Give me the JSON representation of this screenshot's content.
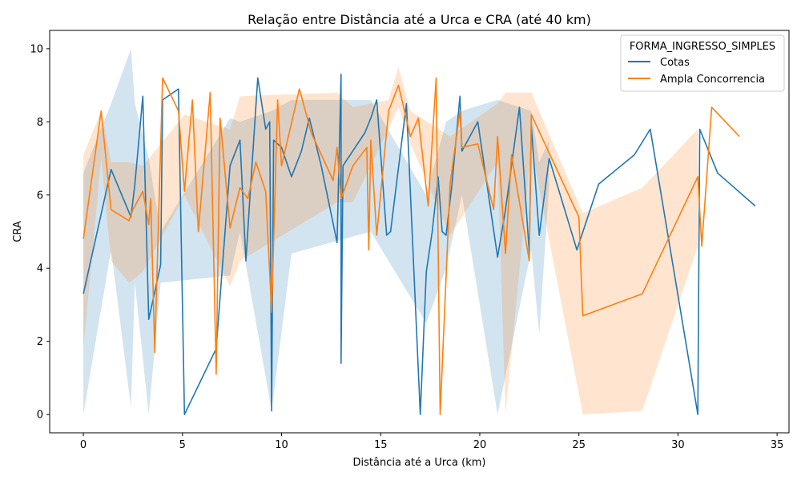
{
  "chart_data": {
    "type": "line",
    "title": "Relação entre Distância até a Urca e CRA (até 40 km)",
    "xlabel": "Distância até a Urca (km)",
    "ylabel": "CRA",
    "xlim": [
      -1.7,
      35.6
    ],
    "ylim": [
      -0.5,
      10.5
    ],
    "x_ticks": [
      0,
      5,
      10,
      15,
      20,
      25,
      30,
      35
    ],
    "y_ticks": [
      0,
      2,
      4,
      6,
      8,
      10
    ],
    "x_tick_labels": [
      "0",
      "5",
      "10",
      "15",
      "20",
      "25",
      "30",
      "35"
    ],
    "y_tick_labels": [
      "0",
      "2",
      "4",
      "6",
      "8",
      "10"
    ],
    "grid": false,
    "legend": {
      "title": "FORMA_INGRESSO_SIMPLES",
      "placement": "top-right",
      "entries": [
        "Cotas",
        "Ampla Concorrencia"
      ]
    },
    "series": [
      {
        "name": "Cotas",
        "color": "#1f77b4",
        "band_color": "#1f77b4",
        "points": [
          [
            0.0,
            3.3
          ],
          [
            1.4,
            6.7
          ],
          [
            2.4,
            5.4
          ],
          [
            2.6,
            6.3
          ],
          [
            3.0,
            8.7
          ],
          [
            3.3,
            2.6
          ],
          [
            3.9,
            4.1
          ],
          [
            4.0,
            8.6
          ],
          [
            4.8,
            8.9
          ],
          [
            5.1,
            0.0
          ],
          [
            6.7,
            1.8
          ],
          [
            7.4,
            6.8
          ],
          [
            7.9,
            7.5
          ],
          [
            8.2,
            4.2
          ],
          [
            8.4,
            5.9
          ],
          [
            8.8,
            9.2
          ],
          [
            9.2,
            7.8
          ],
          [
            9.4,
            8.0
          ],
          [
            9.5,
            0.1
          ],
          [
            9.6,
            7.5
          ],
          [
            10.0,
            7.3
          ],
          [
            10.5,
            6.5
          ],
          [
            11.0,
            7.2
          ],
          [
            11.4,
            8.1
          ],
          [
            12.0,
            6.8
          ],
          [
            12.8,
            4.7
          ],
          [
            13.0,
            9.3
          ],
          [
            13.0,
            1.4
          ],
          [
            13.1,
            6.8
          ],
          [
            14.2,
            7.7
          ],
          [
            14.5,
            8.1
          ],
          [
            14.8,
            8.6
          ],
          [
            15.3,
            4.9
          ],
          [
            15.5,
            5.0
          ],
          [
            16.3,
            8.5
          ],
          [
            17.0,
            0.0
          ],
          [
            17.3,
            3.9
          ],
          [
            17.6,
            5.0
          ],
          [
            17.9,
            6.5
          ],
          [
            18.1,
            5.0
          ],
          [
            18.3,
            4.9
          ],
          [
            18.6,
            6.3
          ],
          [
            19.0,
            8.7
          ],
          [
            19.1,
            7.2
          ],
          [
            19.9,
            8.0
          ],
          [
            20.9,
            4.3
          ],
          [
            21.3,
            5.6
          ],
          [
            22.0,
            8.4
          ],
          [
            22.5,
            4.4
          ],
          [
            22.6,
            7.9
          ],
          [
            23.0,
            4.9
          ],
          [
            23.5,
            7.0
          ],
          [
            24.9,
            4.5
          ],
          [
            26.0,
            6.3
          ],
          [
            27.8,
            7.1
          ],
          [
            28.6,
            7.8
          ],
          [
            31.0,
            0.0
          ],
          [
            31.1,
            7.8
          ],
          [
            32.0,
            6.6
          ],
          [
            33.9,
            5.7
          ]
        ],
        "band": [
          [
            0.0,
            0.0,
            6.6
          ],
          [
            1.4,
            4.5,
            8.5
          ],
          [
            2.4,
            0.2,
            10.0
          ],
          [
            2.6,
            3.6,
            8.5
          ],
          [
            3.3,
            0.0,
            7.0
          ],
          [
            3.9,
            3.6,
            5.0
          ],
          [
            7.4,
            3.8,
            8.1
          ],
          [
            7.9,
            5.0,
            8.0
          ],
          [
            9.5,
            0.1,
            8.3
          ],
          [
            10.5,
            4.4,
            8.6
          ],
          [
            14.5,
            5.0,
            8.6
          ],
          [
            17.3,
            2.5,
            6.0
          ],
          [
            18.3,
            4.0,
            8.0
          ],
          [
            19.1,
            6.0,
            8.3
          ],
          [
            20.9,
            0.0,
            8.6
          ],
          [
            22.6,
            4.5,
            8.3
          ],
          [
            23.0,
            2.2,
            6.9
          ],
          [
            23.5,
            6.3,
            7.5
          ]
        ]
      },
      {
        "name": "Ampla Concorrencia",
        "color": "#ff7f0e",
        "band_color": "#ff7f0e",
        "points": [
          [
            0.0,
            4.8
          ],
          [
            0.9,
            8.3
          ],
          [
            1.4,
            5.6
          ],
          [
            2.3,
            5.3
          ],
          [
            2.5,
            5.6
          ],
          [
            3.0,
            6.1
          ],
          [
            3.3,
            5.2
          ],
          [
            3.4,
            5.9
          ],
          [
            3.6,
            1.7
          ],
          [
            4.0,
            9.2
          ],
          [
            4.8,
            8.3
          ],
          [
            5.1,
            6.1
          ],
          [
            5.5,
            8.6
          ],
          [
            5.8,
            5.0
          ],
          [
            6.4,
            8.8
          ],
          [
            6.7,
            1.1
          ],
          [
            6.9,
            8.1
          ],
          [
            7.4,
            5.1
          ],
          [
            7.9,
            6.2
          ],
          [
            8.3,
            5.9
          ],
          [
            8.7,
            6.9
          ],
          [
            9.2,
            6.1
          ],
          [
            9.5,
            2.8
          ],
          [
            9.8,
            8.6
          ],
          [
            10.0,
            6.8
          ],
          [
            10.9,
            8.9
          ],
          [
            11.5,
            7.7
          ],
          [
            12.6,
            6.4
          ],
          [
            12.8,
            7.3
          ],
          [
            13.0,
            5.9
          ],
          [
            13.6,
            6.8
          ],
          [
            14.3,
            7.3
          ],
          [
            14.4,
            4.5
          ],
          [
            14.5,
            7.5
          ],
          [
            14.8,
            4.9
          ],
          [
            15.4,
            8.3
          ],
          [
            15.9,
            9.0
          ],
          [
            16.5,
            7.6
          ],
          [
            16.9,
            8.1
          ],
          [
            17.4,
            5.7
          ],
          [
            17.8,
            9.2
          ],
          [
            18.0,
            0.0
          ],
          [
            18.5,
            6.3
          ],
          [
            19.0,
            8.3
          ],
          [
            19.1,
            7.3
          ],
          [
            19.9,
            7.4
          ],
          [
            20.7,
            5.6
          ],
          [
            20.9,
            7.6
          ],
          [
            21.3,
            4.4
          ],
          [
            21.6,
            7.1
          ],
          [
            22.5,
            4.2
          ],
          [
            22.6,
            8.2
          ],
          [
            25.0,
            5.4
          ],
          [
            25.2,
            2.7
          ],
          [
            28.2,
            3.3
          ],
          [
            31.0,
            6.5
          ],
          [
            31.2,
            4.6
          ],
          [
            31.7,
            8.4
          ],
          [
            33.1,
            7.6
          ]
        ],
        "band": [
          [
            0.0,
            1.8,
            7.1
          ],
          [
            0.9,
            7.0,
            8.3
          ],
          [
            1.4,
            4.2,
            6.9
          ],
          [
            2.3,
            3.6,
            6.9
          ],
          [
            3.0,
            3.9,
            6.8
          ],
          [
            5.1,
            6.0,
            8.2
          ],
          [
            7.4,
            3.5,
            7.8
          ],
          [
            7.9,
            4.2,
            8.7
          ],
          [
            12.8,
            5.8,
            8.8
          ],
          [
            13.6,
            5.8,
            8.4
          ],
          [
            15.4,
            7.8,
            8.6
          ],
          [
            15.9,
            8.4,
            9.5
          ],
          [
            16.5,
            7.4,
            8.3
          ],
          [
            18.5,
            4.9,
            7.6
          ],
          [
            20.9,
            6.9,
            8.5
          ],
          [
            21.3,
            0.0,
            8.8
          ],
          [
            22.6,
            7.3,
            8.8
          ],
          [
            25.2,
            0.0,
            5.5
          ],
          [
            28.2,
            0.1,
            6.2
          ],
          [
            31.0,
            4.6,
            7.8
          ]
        ]
      }
    ]
  }
}
